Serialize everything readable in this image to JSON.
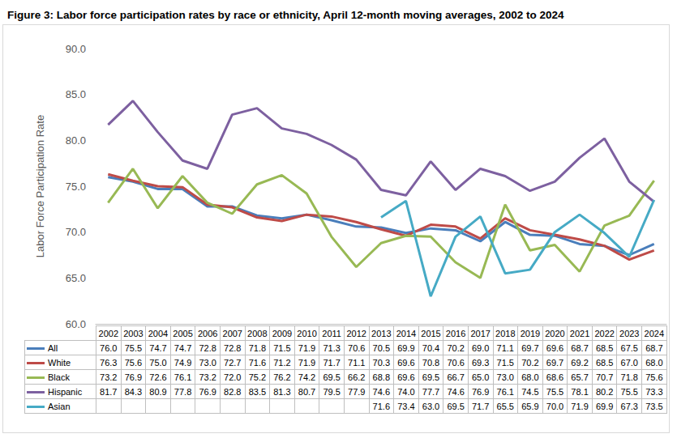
{
  "chart_data": {
    "type": "line",
    "title": "Figure 3: Labor force participation rates by race or ethnicity, April 12-month moving averages, 2002 to 2024",
    "y_label": "Labor Force Participation Rate",
    "categories": [
      "2002",
      "2003",
      "2004",
      "2005",
      "2006",
      "2007",
      "2008",
      "2009",
      "2010",
      "2011",
      "2012",
      "2013",
      "2014",
      "2015",
      "2016",
      "2017",
      "2018",
      "2019",
      "2020",
      "2021",
      "2022",
      "2023",
      "2024"
    ],
    "ylim": [
      60,
      90
    ],
    "yticks": [
      {
        "value": 60,
        "label": "60.0"
      },
      {
        "value": 65,
        "label": "65.0"
      },
      {
        "value": 70,
        "label": "70.0"
      },
      {
        "value": 75,
        "label": "75.0"
      },
      {
        "value": 80,
        "label": "80.0"
      },
      {
        "value": 85,
        "label": "85.0"
      },
      {
        "value": 90,
        "label": "90.0"
      }
    ],
    "grid": false,
    "series": [
      {
        "name": "All",
        "color": "#4a7ebb",
        "values": [
          76.0,
          75.5,
          74.7,
          74.7,
          72.8,
          72.8,
          71.8,
          71.5,
          71.9,
          71.3,
          70.6,
          70.5,
          69.9,
          70.4,
          70.2,
          69.0,
          71.1,
          69.7,
          69.6,
          68.7,
          68.5,
          67.5,
          68.7
        ],
        "value_labels": [
          "76.0",
          "75.5",
          "74.7",
          "74.7",
          "72.8",
          "72.8",
          "71.8",
          "71.5",
          "71.9",
          "71.3",
          "70.6",
          "70.5",
          "69.9",
          "70.4",
          "70.2",
          "69.0",
          "71.1",
          "69.7",
          "69.6",
          "68.7",
          "68.5",
          "67.5",
          "68.7"
        ]
      },
      {
        "name": "White",
        "color": "#be4b48",
        "values": [
          76.3,
          75.6,
          75.0,
          74.9,
          73.0,
          72.7,
          71.6,
          71.2,
          71.9,
          71.7,
          71.1,
          70.3,
          69.6,
          70.8,
          70.6,
          69.3,
          71.5,
          70.2,
          69.7,
          69.2,
          68.5,
          67.0,
          68.0
        ],
        "value_labels": [
          "76.3",
          "75.6",
          "75.0",
          "74.9",
          "73.0",
          "72.7",
          "71.6",
          "71.2",
          "71.9",
          "71.7",
          "71.1",
          "70.3",
          "69.6",
          "70.8",
          "70.6",
          "69.3",
          "71.5",
          "70.2",
          "69.7",
          "69.2",
          "68.5",
          "67.0",
          "68.0"
        ]
      },
      {
        "name": "Black",
        "color": "#98b954",
        "values": [
          73.2,
          76.9,
          72.6,
          76.1,
          73.2,
          72.0,
          75.2,
          76.2,
          74.2,
          69.5,
          66.2,
          68.8,
          69.6,
          69.5,
          66.7,
          65.0,
          73.0,
          68.0,
          68.6,
          65.7,
          70.7,
          71.8,
          75.6
        ],
        "value_labels": [
          "73.2",
          "76.9",
          "72.6",
          "76.1",
          "73.2",
          "72.0",
          "75.2",
          "76.2",
          "74.2",
          "69.5",
          "66.2",
          "68.8",
          "69.6",
          "69.5",
          "66.7",
          "65.0",
          "73.0",
          "68.0",
          "68.6",
          "65.7",
          "70.7",
          "71.8",
          "75.6"
        ]
      },
      {
        "name": "Hispanic",
        "color": "#7d60a0",
        "values": [
          81.7,
          84.3,
          80.9,
          77.8,
          76.9,
          82.8,
          83.5,
          81.3,
          80.7,
          79.5,
          77.9,
          74.6,
          74.0,
          77.7,
          74.6,
          76.9,
          76.1,
          74.5,
          75.5,
          78.1,
          80.2,
          75.5,
          73.3
        ],
        "value_labels": [
          "81.7",
          "84.3",
          "80.9",
          "77.8",
          "76.9",
          "82.8",
          "83.5",
          "81.3",
          "80.7",
          "79.5",
          "77.9",
          "74.6",
          "74.0",
          "77.7",
          "74.6",
          "76.9",
          "76.1",
          "74.5",
          "75.5",
          "78.1",
          "80.2",
          "75.5",
          "73.3"
        ]
      },
      {
        "name": "Asian",
        "color": "#46aac5",
        "values": [
          null,
          null,
          null,
          null,
          null,
          null,
          null,
          null,
          null,
          null,
          null,
          71.6,
          73.4,
          63.0,
          69.5,
          71.7,
          65.5,
          65.9,
          70.0,
          71.9,
          69.9,
          67.3,
          73.5
        ],
        "value_labels": [
          null,
          null,
          null,
          null,
          null,
          null,
          null,
          null,
          null,
          null,
          null,
          "71.6",
          "73.4",
          "63.0",
          "69.5",
          "71.7",
          "65.5",
          "65.9",
          "70.0",
          "71.9",
          "69.9",
          "67.3",
          "73.5"
        ]
      }
    ]
  }
}
